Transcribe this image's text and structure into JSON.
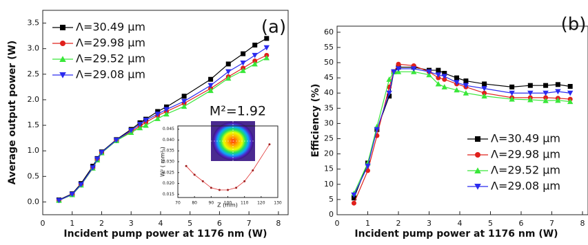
{
  "chart_data": [
    {
      "type": "line",
      "label": "(a)",
      "annotation": "M²=1.92",
      "xlabel": "Incident pump power at 1176 nm (W)",
      "ylabel": "Average output power (W)",
      "x": [
        0.55,
        1.0,
        1.3,
        1.7,
        1.85,
        2.0,
        2.5,
        3.0,
        3.3,
        3.5,
        3.9,
        4.2,
        4.8,
        5.7,
        6.3,
        6.8,
        7.2,
        7.6
      ],
      "xlim": [
        0,
        8.33
      ],
      "xticks": [
        0,
        1,
        2,
        3,
        4,
        5,
        6,
        7,
        8
      ],
      "ylim": [
        -0.25,
        3.75
      ],
      "yticks": [
        {
          "value": 0,
          "label": "0.0"
        },
        0.5,
        {
          "value": 1,
          "label": "1.0"
        },
        1.5,
        {
          "value": 2,
          "label": "2.0"
        },
        2.5,
        {
          "value": 3,
          "label": "3.0"
        },
        3.5
      ],
      "legend": "upper left",
      "series": [
        {
          "name": "Λ=30.49 µm",
          "color": "#000000",
          "marker": "square",
          "values": [
            0.04,
            0.16,
            0.36,
            0.7,
            0.85,
            0.98,
            1.22,
            1.42,
            1.55,
            1.62,
            1.77,
            1.86,
            2.07,
            2.4,
            2.7,
            2.9,
            3.07,
            3.2
          ]
        },
        {
          "name": "Λ=29.98 µm",
          "color": "#e0201b",
          "marker": "circle",
          "values": [
            0.03,
            0.14,
            0.33,
            0.66,
            0.82,
            0.96,
            1.2,
            1.38,
            1.48,
            1.56,
            1.69,
            1.77,
            1.93,
            2.22,
            2.45,
            2.62,
            2.76,
            2.87
          ]
        },
        {
          "name": "Λ=29.52 µm",
          "color": "#39e739",
          "marker": "triangle-up",
          "values": [
            0.03,
            0.14,
            0.33,
            0.66,
            0.82,
            0.96,
            1.2,
            1.36,
            1.45,
            1.5,
            1.63,
            1.72,
            1.87,
            2.18,
            2.42,
            2.57,
            2.7,
            2.82
          ]
        },
        {
          "name": "Λ=29.08 µm",
          "color": "#2b2bef",
          "marker": "triangle-down",
          "values": [
            0.03,
            0.15,
            0.34,
            0.67,
            0.84,
            0.97,
            1.21,
            1.4,
            1.52,
            1.6,
            1.72,
            1.81,
            1.97,
            2.28,
            2.55,
            2.72,
            2.87,
            3.02
          ]
        }
      ]
    },
    {
      "type": "line",
      "xlabel": "Z (mm)",
      "ylabel": "W² ( mm² )",
      "x": [
        75,
        80,
        85,
        90,
        95,
        100,
        105,
        110,
        115,
        125
      ],
      "values": [
        0.028,
        0.024,
        0.021,
        0.018,
        0.017,
        0.017,
        0.018,
        0.021,
        0.026,
        0.038
      ],
      "color": "#e03030",
      "marker": "circle",
      "xlim": [
        70,
        130
      ],
      "xticks": [
        70,
        80,
        90,
        100,
        110,
        120,
        130
      ],
      "ylim": [
        0.0135,
        0.0465
      ],
      "yticks": [
        0.015,
        {
          "value": 0.02,
          "label": "0.020"
        },
        0.025,
        {
          "value": 0.03,
          "label": "0.030"
        },
        0.035,
        {
          "value": 0.04,
          "label": "0.040"
        },
        0.045
      ]
    },
    {
      "type": "line",
      "label": "(b)",
      "xlabel": "Incident pump power at 1176 nm (W)",
      "ylabel": "Efficiency (%)",
      "x": [
        0.55,
        1.0,
        1.3,
        1.7,
        1.85,
        2.0,
        2.5,
        3.0,
        3.3,
        3.5,
        3.9,
        4.2,
        4.8,
        5.7,
        6.3,
        6.8,
        7.2,
        7.6
      ],
      "xlim": [
        0,
        8.18
      ],
      "xticks": [
        0,
        1,
        2,
        3,
        4,
        5,
        6,
        7,
        8
      ],
      "ylim": [
        0,
        62
      ],
      "yticks": [
        0,
        5,
        10,
        15,
        20,
        25,
        30,
        35,
        40,
        45,
        50,
        55,
        60
      ],
      "legend": "lower right",
      "series": [
        {
          "name": "Λ=30.49 µm",
          "color": "#000000",
          "marker": "square",
          "values": [
            5.5,
            17,
            28,
            39,
            47,
            48.5,
            48.5,
            47.5,
            47.5,
            46.5,
            45,
            44,
            43,
            42,
            42.5,
            42.5,
            42.8,
            42.2
          ]
        },
        {
          "name": "Λ=29.98 µm",
          "color": "#e0201b",
          "marker": "circle",
          "values": [
            3.8,
            14.5,
            26,
            42,
            47,
            49.5,
            49,
            47,
            45,
            44.5,
            43,
            42,
            40,
            38.5,
            38.5,
            38.5,
            38.3,
            38
          ]
        },
        {
          "name": "Λ=29.52 µm",
          "color": "#39e739",
          "marker": "triangle-up",
          "values": [
            7,
            17,
            29,
            44.5,
            47,
            47,
            47,
            46,
            43,
            42,
            41,
            40,
            39,
            38,
            37.8,
            37.5,
            37.6,
            37.2
          ]
        },
        {
          "name": "Λ=29.08 µm",
          "color": "#2b2bef",
          "marker": "triangle-down",
          "values": [
            6.5,
            16,
            28,
            40,
            47,
            48,
            48,
            47,
            46,
            45.5,
            43.5,
            42.5,
            41.5,
            40,
            40,
            40,
            40.5,
            40
          ]
        }
      ]
    }
  ]
}
